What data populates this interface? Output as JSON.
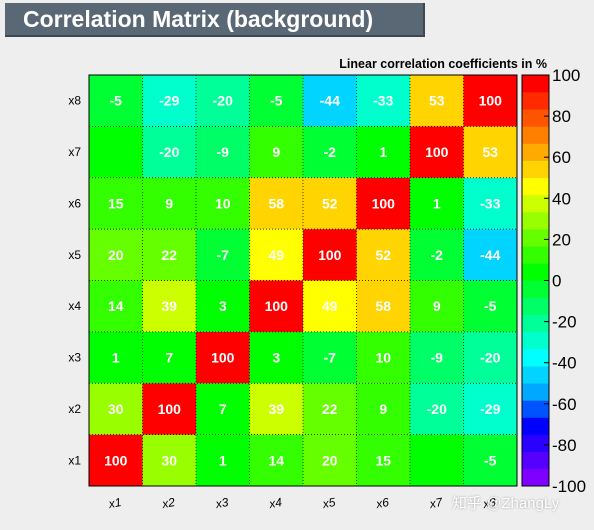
{
  "title": "Correlation Matrix (background)",
  "chart_data": {
    "type": "heatmap",
    "title": "Correlation Matrix (background)",
    "subtitle": "Linear correlation coefficients in %",
    "x_labels": [
      "x1",
      "x2",
      "x3",
      "x4",
      "x5",
      "x6",
      "x7",
      "x8"
    ],
    "y_labels": [
      "x1",
      "x2",
      "x3",
      "x4",
      "x5",
      "x6",
      "x7",
      "x8"
    ],
    "matrix": [
      [
        100,
        30,
        1,
        14,
        20,
        15,
        0,
        -5
      ],
      [
        30,
        100,
        7,
        39,
        22,
        9,
        -20,
        -29
      ],
      [
        1,
        7,
        100,
        3,
        -7,
        10,
        -9,
        -20
      ],
      [
        14,
        39,
        3,
        100,
        49,
        58,
        9,
        -5
      ],
      [
        20,
        22,
        -7,
        49,
        100,
        52,
        -2,
        -44
      ],
      [
        15,
        9,
        10,
        58,
        52,
        100,
        1,
        -33
      ],
      [
        0,
        -20,
        -9,
        9,
        -2,
        1,
        100,
        53
      ],
      [
        -5,
        -29,
        -20,
        -5,
        -44,
        -33,
        53,
        100
      ]
    ],
    "hidden_labels": [
      [
        0,
        6
      ],
      [
        6,
        0
      ]
    ],
    "zlim": [
      -100,
      100
    ],
    "z_ticks": [
      100,
      80,
      60,
      40,
      20,
      0,
      -20,
      -40,
      -60,
      -80,
      -100
    ],
    "palette": [
      "#7f00ff",
      "#5500ff",
      "#2a00ff",
      "#0000ff",
      "#0054ff",
      "#00a8ff",
      "#00d4ff",
      "#00ffff",
      "#00ffcc",
      "#00ff99",
      "#00ff66",
      "#00ff33",
      "#00ff00",
      "#33ff00",
      "#66ff00",
      "#99ff00",
      "#ccff00",
      "#ffff00",
      "#ffd400",
      "#ffaa00",
      "#ff7f00",
      "#ff5500",
      "#ff2a00",
      "#ff0000"
    ]
  },
  "watermark": "知乎 @ZhangLy"
}
